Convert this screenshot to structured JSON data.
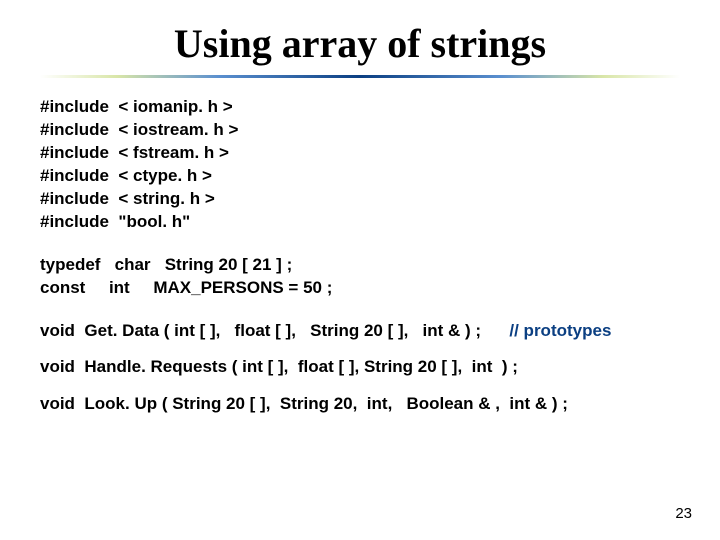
{
  "title": "Using array of strings",
  "title_color": "#000000",
  "divider_colors": [
    "#ffffff",
    "#d9e6a8",
    "#5a8fcf",
    "#0b3f82",
    "#5a8fcf",
    "#d9e6a8",
    "#ffffff"
  ],
  "background_color": "#ffffff",
  "code_font": "Arial",
  "code_fontsize": 17,
  "code_weight": "bold",
  "includes": [
    "#include  < iomanip. h >",
    "#include  < iostream. h >",
    "#include  < fstream. h >",
    "#include  < ctype. h >",
    "#include  < string. h >",
    "#include  \"bool. h\""
  ],
  "typedefs": [
    "typedef   char   String 20 [ 21 ] ;",
    "const     int     MAX_PERSONS = 50 ;"
  ],
  "prototypes": {
    "line1_a": "void  Get. Data ( int [ ],   float [ ],   String 20 [ ],   int & ) ;      ",
    "line1_comment": "// prototypes",
    "line2": "void  Handle. Requests ( int [ ],  float [ ], String 20 [ ],  int  ) ;",
    "line3": "void  Look. Up ( String 20 [ ],  String 20,  int,   Boolean & ,  int & ) ;"
  },
  "comment_color": "#0b3f82",
  "page_number": "23"
}
